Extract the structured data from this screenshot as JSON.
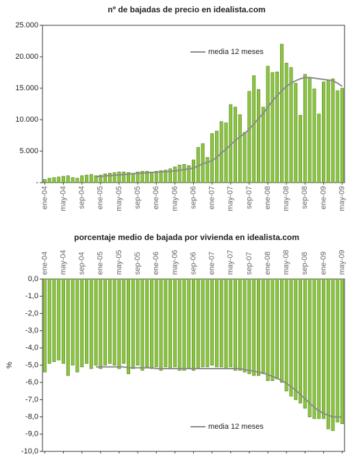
{
  "chart_data": [
    {
      "type": "bar",
      "title": "nº de bajadas de precio en idealista.com",
      "categories": [
        "ene-04",
        null,
        null,
        null,
        "may-04",
        null,
        null,
        null,
        "sep-04",
        null,
        null,
        null,
        "ene-05",
        null,
        null,
        null,
        "may-05",
        null,
        null,
        null,
        "sep-05",
        null,
        null,
        null,
        "ene-06",
        null,
        null,
        null,
        "may-06",
        null,
        null,
        null,
        "sep-06",
        null,
        null,
        null,
        "ene-07",
        null,
        null,
        null,
        "may-07",
        null,
        null,
        null,
        "sep-07",
        null,
        null,
        null,
        "ene-08",
        null,
        null,
        null,
        "may-08",
        null,
        null,
        null,
        "sep-08",
        null,
        null,
        null,
        "ene-09",
        null,
        null,
        null,
        "may-09"
      ],
      "values": [
        500,
        700,
        800,
        900,
        1000,
        1100,
        800,
        700,
        1100,
        1200,
        1300,
        1100,
        1200,
        1400,
        1500,
        1600,
        1700,
        1700,
        1600,
        1500,
        1700,
        1800,
        1800,
        1700,
        1800,
        1900,
        2000,
        2200,
        2500,
        2800,
        2900,
        2700,
        3600,
        5600,
        6200,
        4000,
        7800,
        8200,
        9700,
        9500,
        12400,
        12000,
        10800,
        8000,
        14500,
        17000,
        14800,
        12000,
        18500,
        17500,
        17600,
        22000,
        19000,
        18300,
        15800,
        10700,
        17200,
        16600,
        14900,
        10900,
        16000,
        16300,
        16500,
        14600,
        15000
      ],
      "color": "#8cc63f",
      "line": {
        "name": "media 12 meses",
        "color": "#8a8a8a",
        "values": [
          null,
          null,
          null,
          null,
          null,
          null,
          null,
          null,
          null,
          null,
          null,
          930,
          990,
          1050,
          1110,
          1170,
          1230,
          1280,
          1350,
          1420,
          1470,
          1520,
          1560,
          1610,
          1660,
          1700,
          1740,
          1790,
          1860,
          1950,
          2060,
          2160,
          2320,
          2640,
          3010,
          3200,
          3500,
          4000,
          4700,
          5300,
          6000,
          6700,
          7300,
          7800,
          8500,
          9300,
          10200,
          11000,
          12000,
          13000,
          13800,
          14600,
          15300,
          15800,
          16200,
          16500,
          16700,
          16700,
          16600,
          16500,
          16400,
          16300,
          16200,
          15800,
          15300
        ]
      },
      "ylim": [
        0,
        25000
      ],
      "yticks": [
        {
          "value": 0,
          "label": "-"
        },
        {
          "value": 5000,
          "label": "5.000"
        },
        {
          "value": 10000,
          "label": "10.000"
        },
        {
          "value": 15000,
          "label": "15.000"
        },
        {
          "value": 20000,
          "label": "20.000"
        },
        {
          "value": 25000,
          "label": "25.000"
        }
      ],
      "grid": false
    },
    {
      "type": "bar",
      "title": "porcentaje medio de bajada por vivienda en idealista.com",
      "ylabel": "%",
      "categories": [
        "ene-04",
        null,
        null,
        null,
        "may-04",
        null,
        null,
        null,
        "sep-04",
        null,
        null,
        null,
        "ene-05",
        null,
        null,
        null,
        "may-05",
        null,
        null,
        null,
        "sep-05",
        null,
        null,
        null,
        "ene-06",
        null,
        null,
        null,
        "may-06",
        null,
        null,
        null,
        "sep-06",
        null,
        null,
        null,
        "ene-07",
        null,
        null,
        null,
        "may-07",
        null,
        null,
        null,
        "sep-07",
        null,
        null,
        null,
        "ene-08",
        null,
        null,
        null,
        "may-08",
        null,
        null,
        null,
        "sep-08",
        null,
        null,
        null,
        "ene-09",
        null,
        null,
        null,
        "may-09"
      ],
      "values": [
        -5.4,
        -4.9,
        -4.8,
        -4.7,
        -4.9,
        -5.6,
        -5.0,
        -5.4,
        -5.1,
        -4.9,
        -5.2,
        -5.0,
        -5.2,
        -5.0,
        -4.9,
        -5.0,
        -5.2,
        -4.9,
        -5.5,
        -5.2,
        -5.0,
        -5.3,
        -5.1,
        -5.2,
        -5.1,
        -5.3,
        -5.1,
        -5.2,
        -5.1,
        -5.3,
        -5.3,
        -5.2,
        -5.3,
        -5.2,
        -5.1,
        -5.1,
        -5.0,
        -5.1,
        -5.1,
        -5.2,
        -5.1,
        -5.3,
        -5.3,
        -5.4,
        -5.5,
        -5.6,
        -5.6,
        -5.5,
        -5.9,
        -5.9,
        -5.8,
        -6.0,
        -6.5,
        -6.8,
        -7.0,
        -7.2,
        -7.5,
        -8.0,
        -8.1,
        -8.1,
        -8.1,
        -8.7,
        -8.8,
        -8.3,
        -8.4
      ],
      "color": "#8cc63f",
      "line": {
        "name": "media 12 meses",
        "color": "#8a8a8a",
        "values": [
          null,
          null,
          null,
          null,
          null,
          null,
          null,
          null,
          null,
          null,
          null,
          -5.1,
          -5.1,
          -5.1,
          -5.1,
          -5.1,
          -5.1,
          -5.1,
          -5.15,
          -5.15,
          -5.15,
          -5.15,
          -5.15,
          -5.15,
          -5.2,
          -5.2,
          -5.2,
          -5.2,
          -5.2,
          -5.2,
          -5.2,
          -5.2,
          -5.2,
          -5.2,
          -5.2,
          -5.2,
          -5.2,
          -5.2,
          -5.2,
          -5.2,
          -5.2,
          -5.2,
          -5.2,
          -5.25,
          -5.3,
          -5.35,
          -5.4,
          -5.45,
          -5.55,
          -5.65,
          -5.75,
          -5.9,
          -6.05,
          -6.25,
          -6.45,
          -6.7,
          -6.95,
          -7.2,
          -7.45,
          -7.65,
          -7.8,
          -7.9,
          -8.0,
          -8.0,
          -8.0
        ]
      },
      "ylim": [
        -10,
        0
      ],
      "yticks": [
        {
          "value": 0,
          "label": "0,0"
        },
        {
          "value": -1,
          "label": "-1,0"
        },
        {
          "value": -2,
          "label": "-2,0"
        },
        {
          "value": -3,
          "label": "-3,0"
        },
        {
          "value": -4,
          "label": "-4,0"
        },
        {
          "value": -5,
          "label": "-5,0"
        },
        {
          "value": -6,
          "label": "-6,0"
        },
        {
          "value": -7,
          "label": "-7,0"
        },
        {
          "value": -8,
          "label": "-8,0"
        },
        {
          "value": -9,
          "label": "-9,0"
        },
        {
          "value": -10,
          "label": "-10,0"
        }
      ],
      "grid": false
    }
  ]
}
